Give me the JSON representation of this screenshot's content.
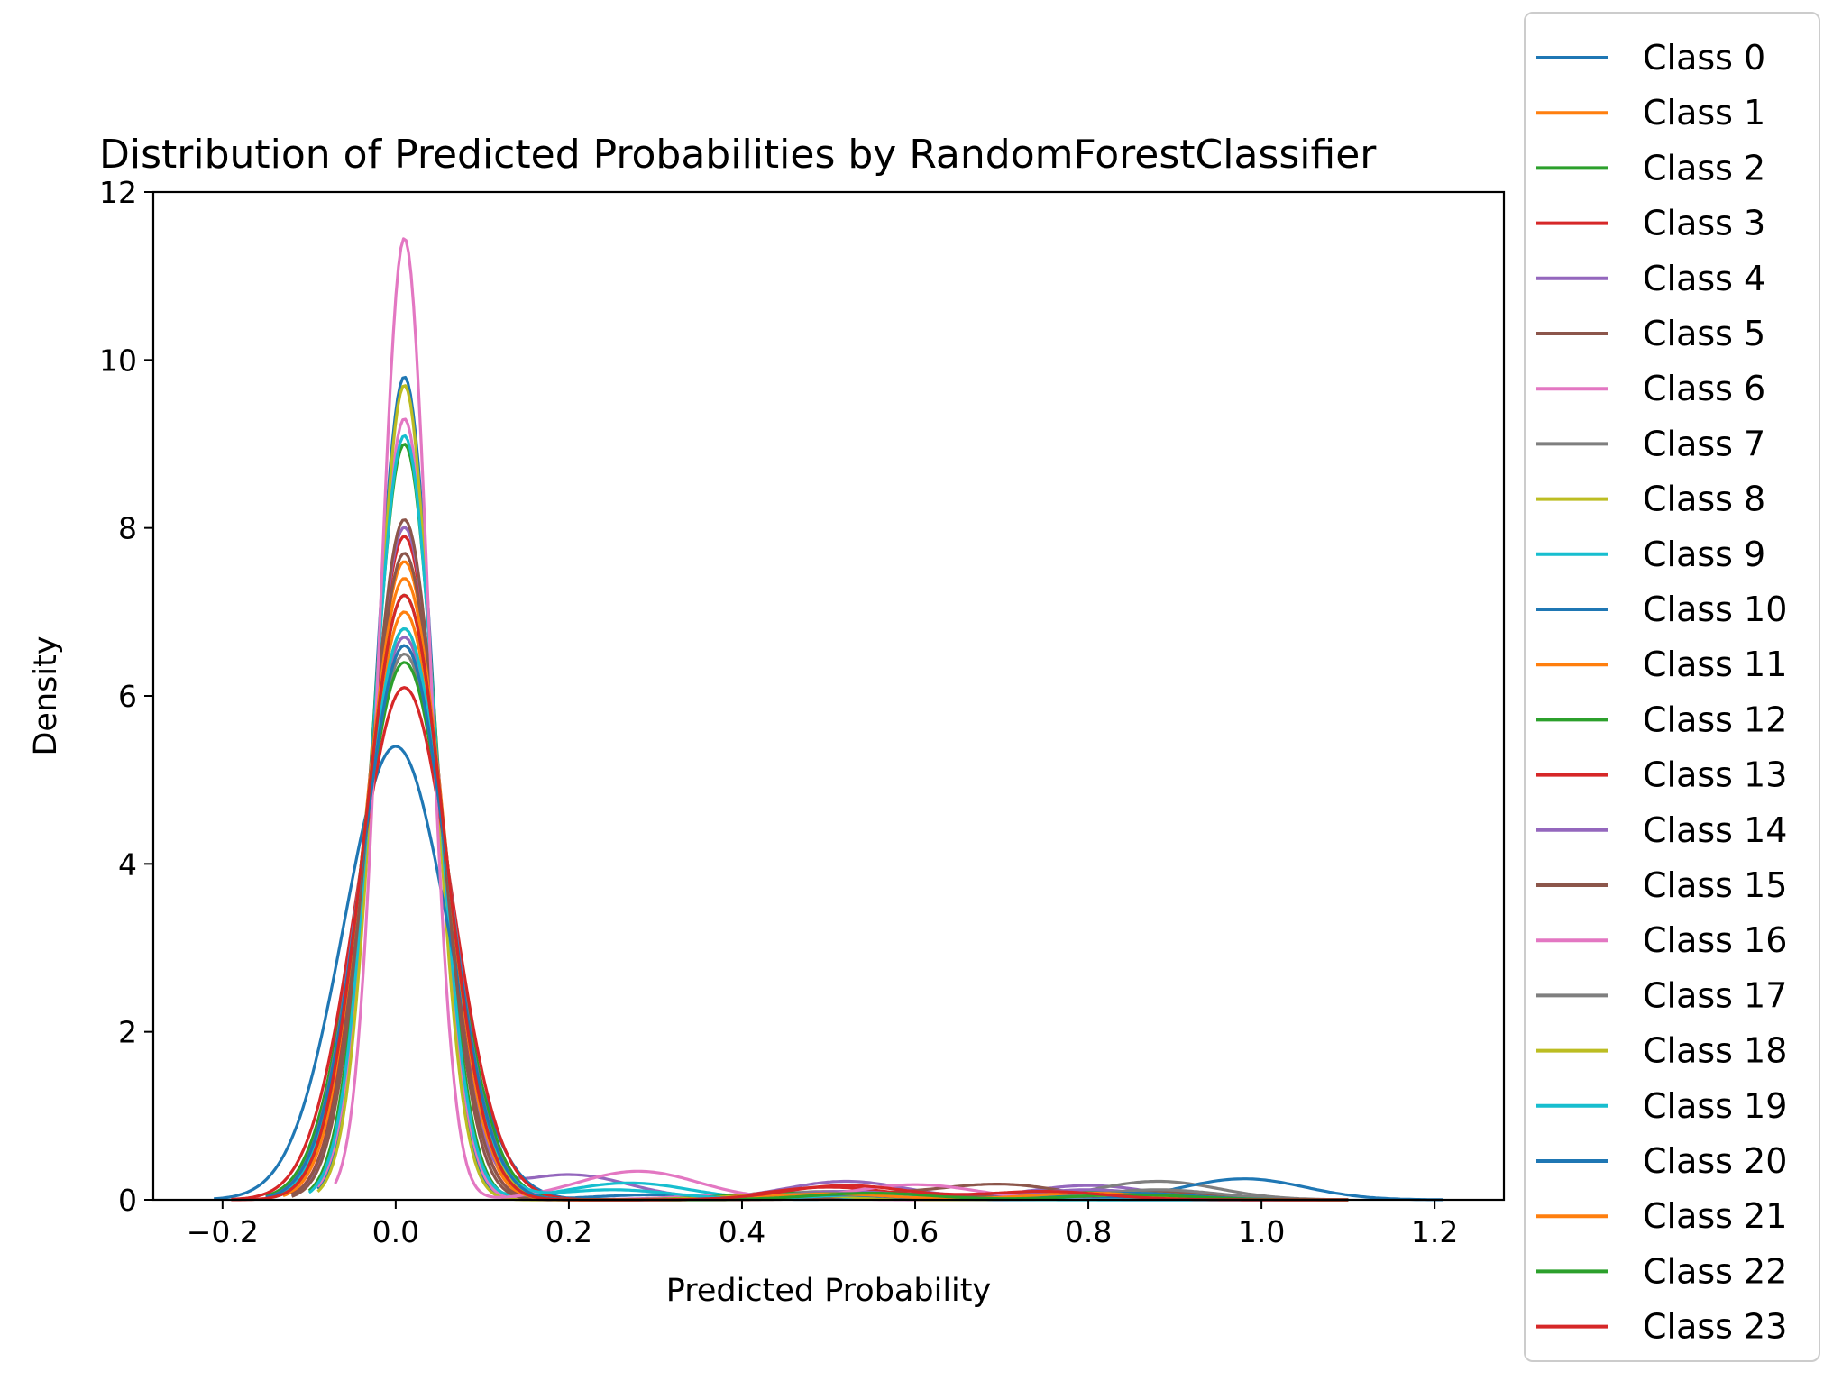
{
  "chart_data": {
    "type": "line",
    "title": "Distribution of Predicted Probabilities by RandomForestClassifier",
    "xlabel": "Predicted Probability",
    "ylabel": "Density",
    "xlim": [
      -0.28,
      1.28
    ],
    "ylim": [
      0,
      12
    ],
    "x_ticks": [
      -0.2,
      0.0,
      0.2,
      0.4,
      0.6,
      0.8,
      1.0,
      1.2
    ],
    "x_tick_labels": [
      "−0.2",
      "0.0",
      "0.2",
      "0.4",
      "0.6",
      "0.8",
      "1.0",
      "1.2"
    ],
    "y_ticks": [
      0,
      2,
      4,
      6,
      8,
      10,
      12
    ],
    "y_tick_labels": [
      "0",
      "2",
      "4",
      "6",
      "8",
      "10",
      "12"
    ],
    "grid": false,
    "legend_position": "right, outside",
    "series": [
      {
        "name": "Class 0",
        "color": "#1f77b4",
        "peak_x": 0.01,
        "peak_y": 9.8,
        "width": 0.034,
        "x_min": -0.09,
        "x_max": 1.1,
        "tail": [
          [
            0.3,
            0.06
          ],
          [
            0.65,
            0.06
          ],
          [
            0.9,
            0.05
          ]
        ]
      },
      {
        "name": "Class 1",
        "color": "#ff7f0e",
        "peak_x": 0.01,
        "peak_y": 7.6,
        "width": 0.044,
        "x_min": -0.13,
        "x_max": 1.1,
        "tail": [
          [
            0.5,
            0.07
          ],
          [
            0.85,
            0.07
          ]
        ]
      },
      {
        "name": "Class 2",
        "color": "#2ca02c",
        "peak_x": 0.01,
        "peak_y": 9.0,
        "width": 0.037,
        "x_min": -0.1,
        "x_max": 1.1,
        "tail": [
          [
            0.45,
            0.05
          ],
          [
            0.8,
            0.06
          ]
        ]
      },
      {
        "name": "Class 3",
        "color": "#d62728",
        "peak_x": 0.01,
        "peak_y": 7.9,
        "width": 0.042,
        "x_min": -0.12,
        "x_max": 1.1,
        "tail": [
          [
            0.55,
            0.08
          ],
          [
            0.9,
            0.07
          ]
        ]
      },
      {
        "name": "Class 4",
        "color": "#9467bd",
        "peak_x": 0.01,
        "peak_y": 8.0,
        "width": 0.041,
        "x_min": -0.12,
        "x_max": 1.1,
        "tail": [
          [
            0.2,
            0.3
          ],
          [
            0.52,
            0.22
          ],
          [
            0.8,
            0.17
          ]
        ]
      },
      {
        "name": "Class 5",
        "color": "#8c564b",
        "peak_x": 0.01,
        "peak_y": 7.7,
        "width": 0.042,
        "x_min": -0.12,
        "x_max": 1.1,
        "tail": [
          [
            0.55,
            0.06
          ],
          [
            0.7,
            0.18
          ]
        ]
      },
      {
        "name": "Class 6",
        "color": "#e377c2",
        "peak_x": 0.01,
        "peak_y": 9.3,
        "width": 0.035,
        "x_min": -0.09,
        "x_max": 1.1,
        "tail": [
          [
            0.4,
            0.06
          ],
          [
            0.85,
            0.06
          ]
        ]
      },
      {
        "name": "Class 7",
        "color": "#7f7f7f",
        "peak_x": 0.01,
        "peak_y": 6.5,
        "width": 0.05,
        "x_min": -0.15,
        "x_max": 1.1,
        "tail": [
          [
            0.5,
            0.1
          ],
          [
            0.88,
            0.22
          ]
        ]
      },
      {
        "name": "Class 8",
        "color": "#bcbd22",
        "peak_x": 0.01,
        "peak_y": 9.7,
        "width": 0.033,
        "x_min": -0.09,
        "x_max": 1.1,
        "tail": [
          [
            0.45,
            0.05
          ],
          [
            0.8,
            0.05
          ]
        ]
      },
      {
        "name": "Class 9",
        "color": "#17becf",
        "peak_x": 0.01,
        "peak_y": 9.1,
        "width": 0.036,
        "x_min": -0.1,
        "x_max": 1.1,
        "tail": [
          [
            0.27,
            0.2
          ],
          [
            0.6,
            0.05
          ]
        ]
      },
      {
        "name": "Class 10",
        "color": "#1f77b4",
        "peak_x": 0.0,
        "peak_y": 5.4,
        "width": 0.06,
        "x_min": -0.21,
        "x_max": 1.21,
        "tail": [
          [
            0.5,
            0.05
          ],
          [
            0.98,
            0.25
          ]
        ]
      },
      {
        "name": "Class 11",
        "color": "#ff7f0e",
        "peak_x": 0.01,
        "peak_y": 7.0,
        "width": 0.047,
        "x_min": -0.14,
        "x_max": 1.1,
        "tail": [
          [
            0.5,
            0.07
          ],
          [
            0.85,
            0.07
          ]
        ]
      },
      {
        "name": "Class 12",
        "color": "#2ca02c",
        "peak_x": 0.01,
        "peak_y": 6.4,
        "width": 0.051,
        "x_min": -0.15,
        "x_max": 1.1,
        "tail": [
          [
            0.45,
            0.08
          ],
          [
            0.8,
            0.1
          ]
        ]
      },
      {
        "name": "Class 13",
        "color": "#d62728",
        "peak_x": 0.01,
        "peak_y": 6.1,
        "width": 0.054,
        "x_min": -0.19,
        "x_max": 1.1,
        "tail": [
          [
            0.5,
            0.15
          ],
          [
            0.75,
            0.1
          ]
        ]
      },
      {
        "name": "Class 14",
        "color": "#9467bd",
        "peak_x": 0.01,
        "peak_y": 6.7,
        "width": 0.049,
        "x_min": -0.14,
        "x_max": 1.1,
        "tail": [
          [
            0.52,
            0.1
          ],
          [
            0.8,
            0.12
          ]
        ]
      },
      {
        "name": "Class 15",
        "color": "#8c564b",
        "peak_x": 0.01,
        "peak_y": 8.1,
        "width": 0.04,
        "x_min": -0.12,
        "x_max": 1.1,
        "tail": [
          [
            0.6,
            0.07
          ],
          [
            0.88,
            0.1
          ]
        ]
      },
      {
        "name": "Class 16",
        "color": "#e377c2",
        "peak_x": 0.01,
        "peak_y": 11.45,
        "width": 0.028,
        "x_min": -0.07,
        "x_max": 1.1,
        "tail": [
          [
            0.28,
            0.34
          ],
          [
            0.6,
            0.18
          ]
        ]
      },
      {
        "name": "Class 17",
        "color": "#7f7f7f",
        "peak_x": 0.01,
        "peak_y": 6.6,
        "width": 0.049,
        "x_min": -0.15,
        "x_max": 1.1,
        "tail": [
          [
            0.5,
            0.08
          ],
          [
            0.88,
            0.12
          ]
        ]
      },
      {
        "name": "Class 18",
        "color": "#bcbd22",
        "peak_x": 0.01,
        "peak_y": 6.8,
        "width": 0.048,
        "x_min": -0.14,
        "x_max": 1.1,
        "tail": [
          [
            0.45,
            0.06
          ],
          [
            0.85,
            0.08
          ]
        ]
      },
      {
        "name": "Class 19",
        "color": "#17becf",
        "peak_x": 0.01,
        "peak_y": 6.8,
        "width": 0.048,
        "x_min": -0.14,
        "x_max": 1.1,
        "tail": [
          [
            0.25,
            0.12
          ],
          [
            0.55,
            0.06
          ]
        ]
      },
      {
        "name": "Class 20",
        "color": "#1f77b4",
        "peak_x": 0.01,
        "peak_y": 6.6,
        "width": 0.049,
        "x_min": -0.15,
        "x_max": 1.1,
        "tail": [
          [
            0.5,
            0.06
          ],
          [
            0.85,
            0.08
          ]
        ]
      },
      {
        "name": "Class 21",
        "color": "#ff7f0e",
        "peak_x": 0.01,
        "peak_y": 7.4,
        "width": 0.045,
        "x_min": -0.13,
        "x_max": 1.1,
        "tail": [
          [
            0.5,
            0.07
          ],
          [
            0.8,
            0.08
          ]
        ]
      },
      {
        "name": "Class 22",
        "color": "#2ca02c",
        "peak_x": 0.01,
        "peak_y": 7.2,
        "width": 0.046,
        "x_min": -0.14,
        "x_max": 1.1,
        "tail": [
          [
            0.55,
            0.08
          ],
          [
            0.85,
            0.06
          ]
        ]
      },
      {
        "name": "Class 23",
        "color": "#d62728",
        "peak_x": 0.01,
        "peak_y": 7.2,
        "width": 0.046,
        "x_min": -0.19,
        "x_max": 1.1,
        "tail": [
          [
            0.52,
            0.17
          ],
          [
            0.75,
            0.1
          ]
        ]
      }
    ]
  }
}
